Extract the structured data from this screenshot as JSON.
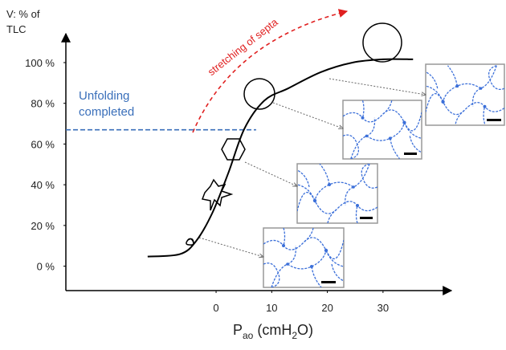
{
  "chart_data": {
    "type": "line",
    "y_label_lines": [
      "V: % of",
      "TLC"
    ],
    "x_label_parts": [
      "P",
      "ao",
      " (cmH",
      "2",
      "O)"
    ],
    "x": [
      -12.3,
      -6.5,
      -3.6,
      -0.7,
      2.2,
      5.1,
      8.7,
      13,
      18.8,
      24.5,
      30,
      35.4
    ],
    "values": [
      4.7,
      5.9,
      12.3,
      26,
      45.8,
      67.6,
      81.4,
      87.4,
      95.3,
      100,
      101.6,
      101.6
    ],
    "color": "#000000",
    "xlim": [
      -27,
      42
    ],
    "ylim": [
      -12,
      113
    ],
    "xticks": [
      0,
      10,
      20,
      30
    ],
    "yticks": [
      {
        "value": 0,
        "label": "0 %"
      },
      {
        "value": 20,
        "label": "20 %"
      },
      {
        "value": 40,
        "label": "40 %"
      },
      {
        "value": 60,
        "label": "60 %"
      },
      {
        "value": 80,
        "label": "80 %"
      },
      {
        "value": 100,
        "label": "100 %"
      }
    ],
    "unfolding_annotation": {
      "lines": [
        "Unfolding",
        "completed"
      ],
      "y": 67,
      "x_end": 7.2,
      "color": "#3a6fba"
    },
    "stretch_annotation": {
      "text": "stretching of septa",
      "color": "#e02020"
    }
  }
}
